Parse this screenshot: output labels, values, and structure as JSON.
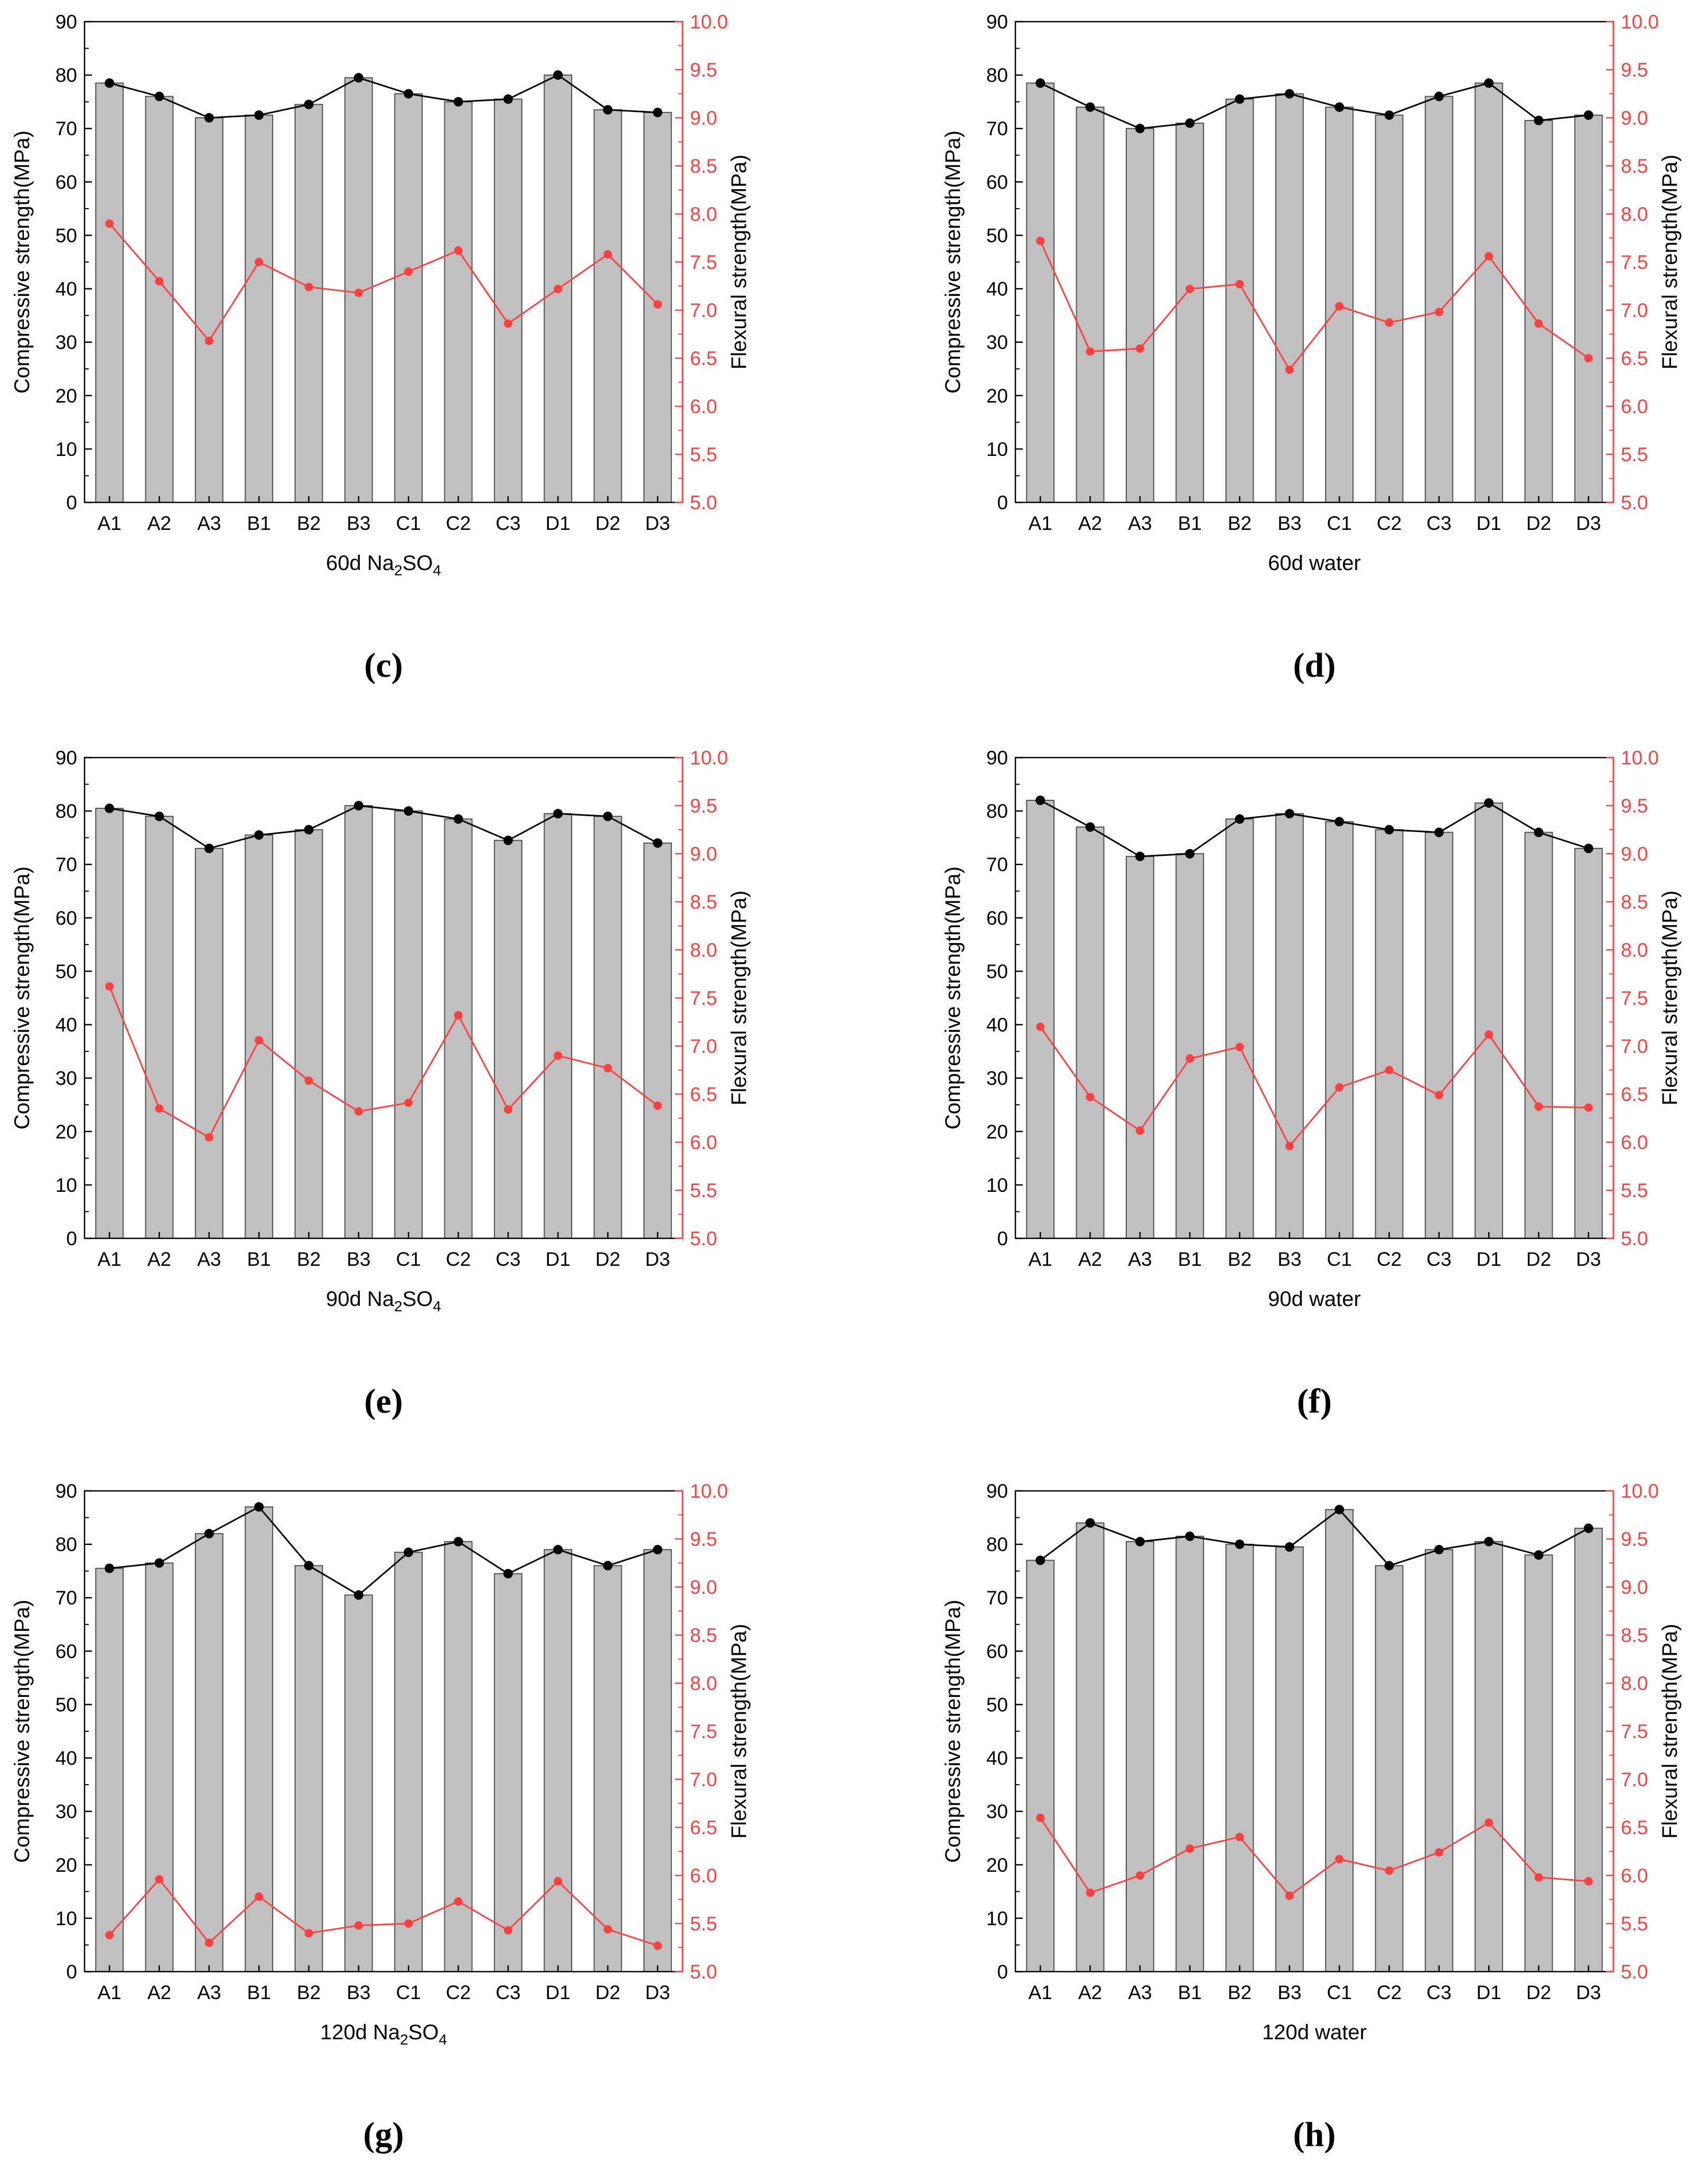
{
  "colors": {
    "bar_fill": "#c0c0c0",
    "bar_stroke": "#505050",
    "compressive_line": "#000000",
    "flexural_line": "#ff4040",
    "axis": "#000000"
  },
  "shared": {
    "left_axis_label": "Compressive strength(MPa)",
    "right_axis_label": "Flexural strength(MPa)",
    "left_ticks": [
      "0",
      "10",
      "20",
      "30",
      "40",
      "50",
      "60",
      "70",
      "80",
      "90"
    ],
    "right_ticks": [
      "5.0",
      "5.5",
      "6.0",
      "6.5",
      "7.0",
      "7.5",
      "8.0",
      "8.5",
      "9.0",
      "9.5",
      "10.0"
    ]
  },
  "chart_data": [
    {
      "type": "bar",
      "panel": "(c)",
      "xlabel_main": "60d Na",
      "xlabel_sub1": "2",
      "xlabel_mid": "SO",
      "xlabel_sub2": "4",
      "categories": [
        "A1",
        "A2",
        "A3",
        "B1",
        "B2",
        "B3",
        "C1",
        "C2",
        "C3",
        "D1",
        "D2",
        "D3"
      ],
      "compressive": [
        78.5,
        76.0,
        72.0,
        72.5,
        74.5,
        79.5,
        76.5,
        75.0,
        75.5,
        80.0,
        73.5,
        73.0
      ],
      "flexural": [
        7.9,
        7.3,
        6.68,
        7.5,
        7.24,
        7.18,
        7.4,
        7.62,
        6.86,
        7.22,
        7.58,
        7.06
      ],
      "ylim": [
        0,
        90
      ],
      "y2lim": [
        5.0,
        10.0
      ]
    },
    {
      "type": "bar",
      "panel": "(d)",
      "xlabel_main": "60d water",
      "xlabel_sub1": "",
      "xlabel_mid": "",
      "xlabel_sub2": "",
      "categories": [
        "A1",
        "A2",
        "A3",
        "B1",
        "B2",
        "B3",
        "C1",
        "C2",
        "C3",
        "D1",
        "D2",
        "D3"
      ],
      "compressive": [
        78.5,
        74.0,
        70.0,
        71.0,
        75.5,
        76.5,
        74.0,
        72.5,
        76.0,
        78.5,
        71.5,
        72.5
      ],
      "flexural": [
        7.72,
        6.57,
        6.6,
        7.22,
        7.27,
        6.38,
        7.04,
        6.87,
        6.98,
        7.56,
        6.86,
        6.5
      ],
      "ylim": [
        0,
        90
      ],
      "y2lim": [
        5.0,
        10.0
      ]
    },
    {
      "type": "bar",
      "panel": "(e)",
      "xlabel_main": "90d Na",
      "xlabel_sub1": "2",
      "xlabel_mid": "SO",
      "xlabel_sub2": "4",
      "categories": [
        "A1",
        "A2",
        "A3",
        "B1",
        "B2",
        "B3",
        "C1",
        "C2",
        "C3",
        "D1",
        "D2",
        "D3"
      ],
      "compressive": [
        80.5,
        79.0,
        73.0,
        75.5,
        76.5,
        81.0,
        80.0,
        78.5,
        74.5,
        79.5,
        79.0,
        74.0
      ],
      "flexural": [
        7.62,
        6.35,
        6.05,
        7.06,
        6.64,
        6.32,
        6.41,
        7.32,
        6.34,
        6.9,
        6.77,
        6.38
      ],
      "ylim": [
        0,
        90
      ],
      "y2lim": [
        5.0,
        10.0
      ]
    },
    {
      "type": "bar",
      "panel": "(f)",
      "xlabel_main": "90d water",
      "xlabel_sub1": "",
      "xlabel_mid": "",
      "xlabel_sub2": "",
      "categories": [
        "A1",
        "A2",
        "A3",
        "B1",
        "B2",
        "B3",
        "C1",
        "C2",
        "C3",
        "D1",
        "D2",
        "D3"
      ],
      "compressive": [
        82.0,
        77.0,
        71.5,
        72.0,
        78.5,
        79.5,
        78.0,
        76.5,
        76.0,
        81.5,
        76.0,
        73.0
      ],
      "flexural": [
        7.2,
        6.47,
        6.12,
        6.87,
        6.99,
        5.96,
        6.57,
        6.75,
        6.49,
        7.12,
        6.37,
        6.36
      ],
      "ylim": [
        0,
        90
      ],
      "y2lim": [
        5.0,
        10.0
      ]
    },
    {
      "type": "bar",
      "panel": "(g)",
      "xlabel_main": "120d Na",
      "xlabel_sub1": "2",
      "xlabel_mid": "SO",
      "xlabel_sub2": "4",
      "categories": [
        "A1",
        "A2",
        "A3",
        "B1",
        "B2",
        "B3",
        "C1",
        "C2",
        "C3",
        "D1",
        "D2",
        "D3"
      ],
      "compressive": [
        75.5,
        76.5,
        82.0,
        87.0,
        76.0,
        70.5,
        78.5,
        80.5,
        74.5,
        79.0,
        76.0,
        79.0
      ],
      "flexural": [
        5.38,
        5.96,
        5.3,
        5.78,
        5.4,
        5.48,
        5.5,
        5.73,
        5.43,
        5.94,
        5.44,
        5.27
      ],
      "ylim": [
        0,
        90
      ],
      "y2lim": [
        5.0,
        10.0
      ]
    },
    {
      "type": "bar",
      "panel": "(h)",
      "xlabel_main": "120d water",
      "xlabel_sub1": "",
      "xlabel_mid": "",
      "xlabel_sub2": "",
      "categories": [
        "A1",
        "A2",
        "A3",
        "B1",
        "B2",
        "B3",
        "C1",
        "C2",
        "C3",
        "D1",
        "D2",
        "D3"
      ],
      "compressive": [
        77.0,
        84.0,
        80.5,
        81.5,
        80.0,
        79.5,
        86.5,
        76.0,
        79.0,
        80.5,
        78.0,
        83.0
      ],
      "flexural": [
        6.6,
        5.82,
        6.0,
        6.28,
        6.4,
        5.79,
        6.17,
        6.05,
        6.24,
        6.55,
        5.98,
        5.94
      ],
      "ylim": [
        0,
        90
      ],
      "y2lim": [
        5.0,
        10.0
      ]
    }
  ]
}
